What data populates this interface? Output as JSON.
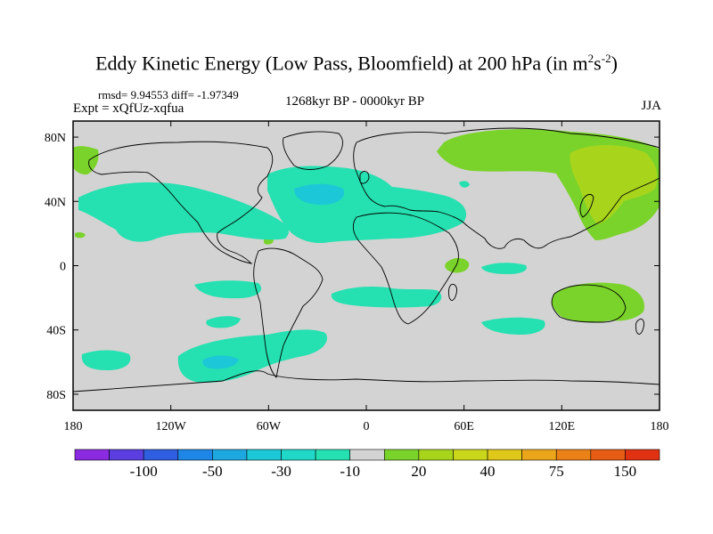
{
  "title": {
    "main": "Eddy Kinetic Energy (Low Pass, Bloomfield) at 200 hPa (in m",
    "sup1": "2",
    "mid": "s",
    "sup2": "-2",
    "end": ")"
  },
  "stats": "rmsd= 9.94553  diff= -1.97349",
  "experiment": "Expt = xQfUz-xqfua",
  "period": "1268kyr BP - 0000kyr BP",
  "season": "JJA",
  "map": {
    "lon_range": [
      -180,
      180
    ],
    "lat_range": [
      -90,
      90
    ],
    "land_color": "#d3d3d3",
    "y_ticks": [
      {
        "lat": 80,
        "label": "80N"
      },
      {
        "lat": 40,
        "label": "40N"
      },
      {
        "lat": 0,
        "label": "0"
      },
      {
        "lat": -40,
        "label": "40S"
      },
      {
        "lat": -80,
        "label": "80S"
      }
    ],
    "x_ticks": [
      {
        "lon": -180,
        "label": "180"
      },
      {
        "lon": -120,
        "label": "120W"
      },
      {
        "lon": -60,
        "label": "60W"
      },
      {
        "lon": 0,
        "label": "0"
      },
      {
        "lon": 60,
        "label": "60E"
      },
      {
        "lon": 120,
        "label": "120E"
      },
      {
        "lon": 180,
        "label": "180"
      }
    ]
  },
  "colorbar": {
    "colors": [
      "#8a2be2",
      "#5a3ee0",
      "#2f5fe0",
      "#1e86e6",
      "#1ea8e0",
      "#1cc8d8",
      "#20d8c8",
      "#25e0b0",
      "#d3d3d3",
      "#7ad32a",
      "#a8d51c",
      "#c9d61a",
      "#e0c81a",
      "#eaa51a",
      "#ea8218",
      "#e65c14",
      "#e03212"
    ],
    "labels": [
      {
        "index": 2,
        "text": "-100"
      },
      {
        "index": 4,
        "text": "-50"
      },
      {
        "index": 6,
        "text": "-30"
      },
      {
        "index": 8,
        "text": "-10"
      },
      {
        "index": 10,
        "text": "20"
      },
      {
        "index": 12,
        "text": "40"
      },
      {
        "index": 14,
        "text": "75"
      },
      {
        "index": 16,
        "text": "150"
      }
    ]
  },
  "anomaly_colors": {
    "neg": "#25e0b0",
    "neg_strong": "#1cc8d8",
    "pos": "#7ad32a",
    "pos_strong": "#a8d51c"
  }
}
